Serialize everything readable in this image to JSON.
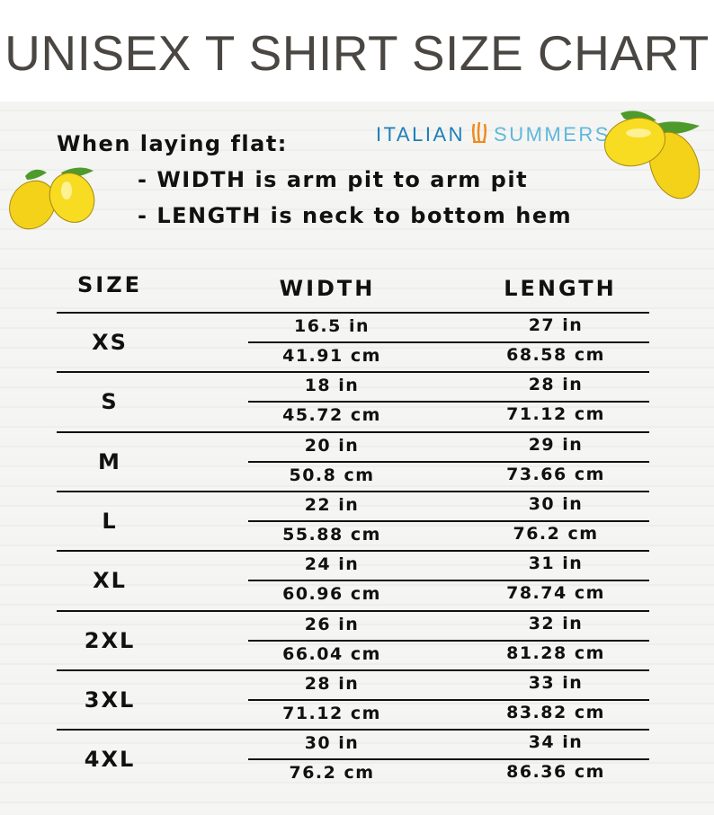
{
  "title": "UNISEX T SHIRT SIZE CHART",
  "logo": {
    "part1": "ITALIAN",
    "part2": "SUMMERS",
    "colors": {
      "primary": "#1d7fb8",
      "secondary": "#5fb8dc",
      "flame": "#f08a1c"
    }
  },
  "instructions": {
    "heading": "When laying flat:",
    "width_note": "- WIDTH is arm pit to arm pit",
    "length_note": "- LENGTH is neck to bottom hem"
  },
  "table": {
    "headers": [
      "SIZE",
      "WIDTH",
      "LENGTH"
    ],
    "rows": [
      {
        "size": "XS",
        "width_in": "16.5 in",
        "width_cm": "41.91 cm",
        "length_in": "27 in",
        "length_cm": "68.58 cm"
      },
      {
        "size": "S",
        "width_in": "18 in",
        "width_cm": "45.72 cm",
        "length_in": "28 in",
        "length_cm": "71.12 cm"
      },
      {
        "size": "M",
        "width_in": "20 in",
        "width_cm": "50.8 cm",
        "length_in": "29 in",
        "length_cm": "73.66 cm"
      },
      {
        "size": "L",
        "width_in": "22 in",
        "width_cm": "55.88 cm",
        "length_in": "30 in",
        "length_cm": "76.2 cm"
      },
      {
        "size": "XL",
        "width_in": "24 in",
        "width_cm": "60.96 cm",
        "length_in": "31 in",
        "length_cm": "78.74 cm"
      },
      {
        "size": "2XL",
        "width_in": "26 in",
        "width_cm": "66.04 cm",
        "length_in": "32 in",
        "length_cm": "81.28 cm"
      },
      {
        "size": "3XL",
        "width_in": "28 in",
        "width_cm": "71.12 cm",
        "length_in": "33 in",
        "length_cm": "83.82 cm"
      },
      {
        "size": "4XL",
        "width_in": "30 in",
        "width_cm": "76.2 cm",
        "length_in": "34 in",
        "length_cm": "86.36 cm"
      }
    ]
  }
}
